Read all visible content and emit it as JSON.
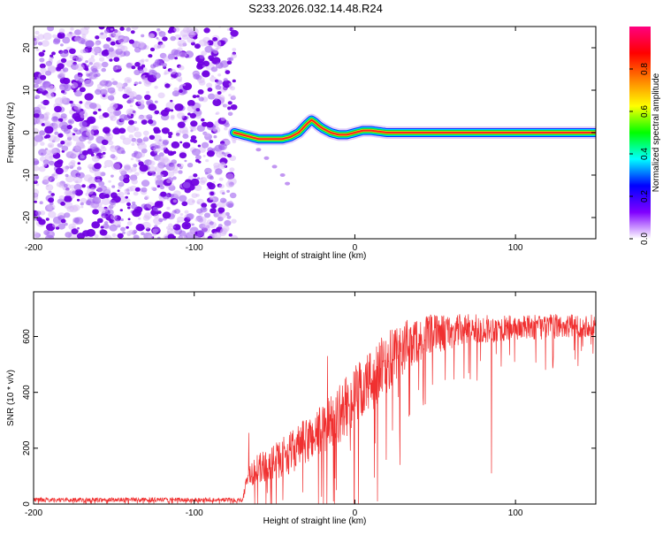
{
  "chart_data": [
    {
      "type": "heatmap",
      "title": "S233.2026.032.14.48.R24",
      "xlabel": "Height of straight line (km)",
      "ylabel": "Frequency (Hz)",
      "xlim": [
        -200,
        150
      ],
      "ylim": [
        -25,
        25
      ],
      "xticks": [
        -200,
        -100,
        0,
        100
      ],
      "xtick_labels": [
        "-200",
        "-100",
        "0",
        "100"
      ],
      "yticks": [
        -20,
        -10,
        0,
        10,
        20
      ],
      "ytick_labels": [
        "-20",
        "-10",
        "0",
        "10",
        "20"
      ],
      "noise_region_x": [
        -200,
        -75
      ],
      "signal_trace": {
        "x": [
          -75,
          -70,
          -65,
          -60,
          -55,
          -50,
          -45,
          -40,
          -35,
          -30,
          -27,
          -25,
          -22,
          -20,
          -15,
          -10,
          -5,
          0,
          5,
          10,
          20,
          40,
          60,
          80,
          100,
          120,
          140,
          150
        ],
        "freq": [
          0,
          -0.5,
          -1,
          -1.5,
          -1.5,
          -1.5,
          -1.5,
          -1,
          0,
          2,
          3,
          2.5,
          1.5,
          1,
          0,
          -0.5,
          -0.5,
          0,
          0.5,
          0.5,
          0,
          0,
          0,
          0,
          0,
          0,
          0,
          0
        ]
      },
      "faint_branch": {
        "x": [
          -60,
          -55,
          -50,
          -45,
          -42
        ],
        "freq": [
          -4,
          -6,
          -8,
          -10,
          -12
        ]
      },
      "colorbar": {
        "label": "Normalized spectral amplitude",
        "range": [
          0,
          1
        ],
        "ticks": [
          0.0,
          0.2,
          0.4,
          0.6,
          0.8
        ],
        "tick_labels": [
          "0.0",
          "0.2",
          "0.4",
          "0.6",
          "0.8"
        ],
        "colors": [
          "#ffffff",
          "#8000ff",
          "#0000ff",
          "#00ffff",
          "#00ff00",
          "#ffff00",
          "#ff8000",
          "#ff0000",
          "#ff0080"
        ]
      }
    },
    {
      "type": "line",
      "xlabel": "Height of straight line (km)",
      "ylabel": "SNR (10 * v/v)",
      "xlim": [
        -200,
        150
      ],
      "ylim": [
        0,
        760
      ],
      "xticks": [
        -200,
        -100,
        0,
        100
      ],
      "xtick_labels": [
        "-200",
        "-100",
        "0",
        "100"
      ],
      "yticks": [
        0,
        200,
        400,
        600
      ],
      "ytick_labels": [
        "0",
        "200",
        "400",
        "600"
      ],
      "color": "#f03030",
      "envelope": {
        "x": [
          -200,
          -70,
          -66,
          -60,
          -50,
          -40,
          -30,
          -20,
          -10,
          0,
          10,
          20,
          30,
          40,
          50,
          70,
          100,
          120,
          150
        ],
        "mean": [
          15,
          15,
          110,
          125,
          150,
          185,
          225,
          270,
          320,
          380,
          440,
          500,
          560,
          590,
          610,
          625,
          630,
          635,
          640
        ],
        "spread": [
          8,
          8,
          45,
          55,
          65,
          75,
          85,
          95,
          105,
          115,
          120,
          115,
          100,
          80,
          70,
          55,
          45,
          45,
          40
        ]
      },
      "spikes": [
        {
          "x": -66,
          "y": 255
        },
        {
          "x": -17,
          "y": 530
        },
        {
          "x": 14,
          "y": 10
        },
        {
          "x": 28,
          "y": 140
        },
        {
          "x": 85,
          "y": 110
        }
      ]
    }
  ]
}
